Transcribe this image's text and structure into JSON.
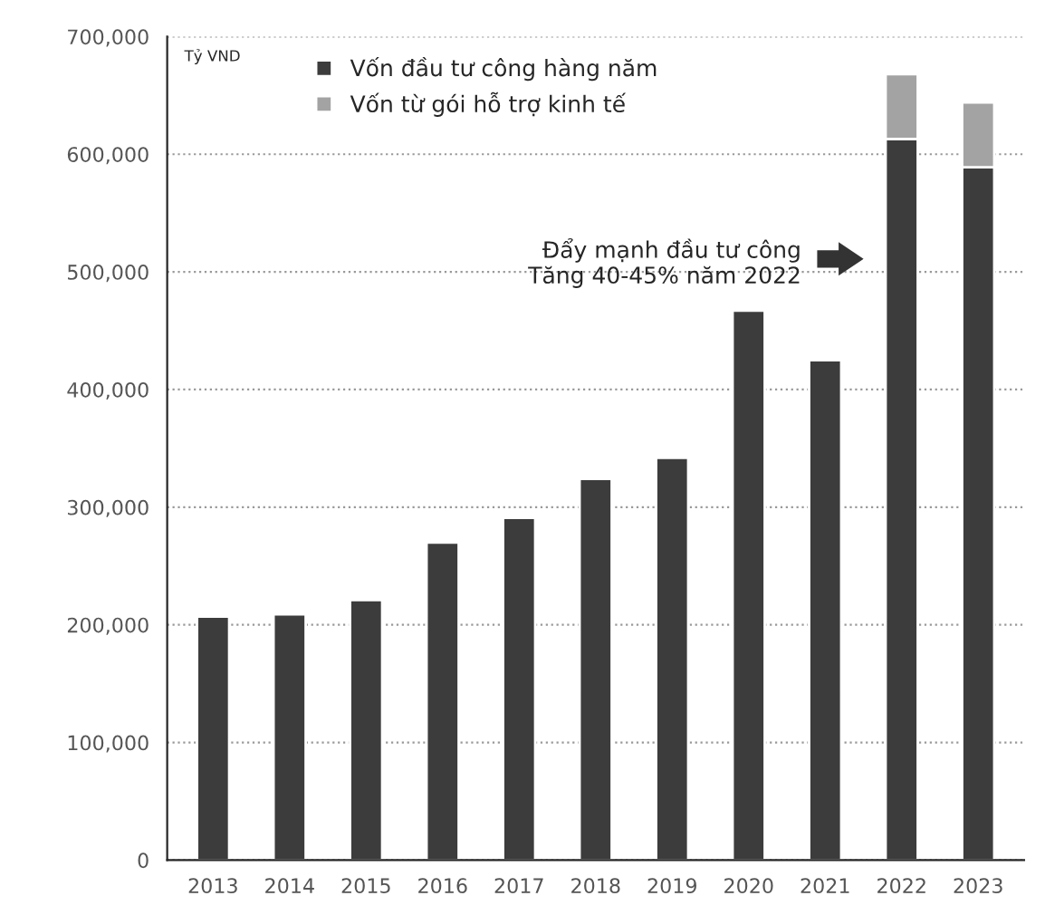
{
  "chart_data": {
    "type": "bar",
    "stacked": true,
    "categories": [
      "2013",
      "2014",
      "2015",
      "2016",
      "2017",
      "2018",
      "2019",
      "2020",
      "2021",
      "2022",
      "2023"
    ],
    "series": [
      {
        "name": "Vốn đầu tư công hàng năm",
        "color": "#3c3c3c",
        "values": [
          207000,
          209000,
          221000,
          270000,
          291000,
          324000,
          342000,
          467000,
          425000,
          613000,
          589000
        ]
      },
      {
        "name": "Vốn từ gói hỗ trợ kinh tế",
        "color": "#a3a3a3",
        "values": [
          null,
          null,
          null,
          null,
          null,
          null,
          null,
          null,
          null,
          55000,
          55000
        ]
      }
    ],
    "ylim": [
      0,
      700000
    ],
    "yticks": [
      {
        "value": 0,
        "label": "0"
      },
      {
        "value": 100000,
        "label": "100,000"
      },
      {
        "value": 200000,
        "label": "200,000"
      },
      {
        "value": 300000,
        "label": "300,000"
      },
      {
        "value": 400000,
        "label": "400,000"
      },
      {
        "value": 500000,
        "label": "500,000"
      },
      {
        "value": 600000,
        "label": "600,000"
      },
      {
        "value": 700000,
        "label": "700,000"
      }
    ],
    "annotations": [
      "Tỷ VND",
      "Đẩy mạnh đầu tư công\nTăng 40-45% năm 2022"
    ],
    "grid": "y",
    "legend": "top left"
  }
}
